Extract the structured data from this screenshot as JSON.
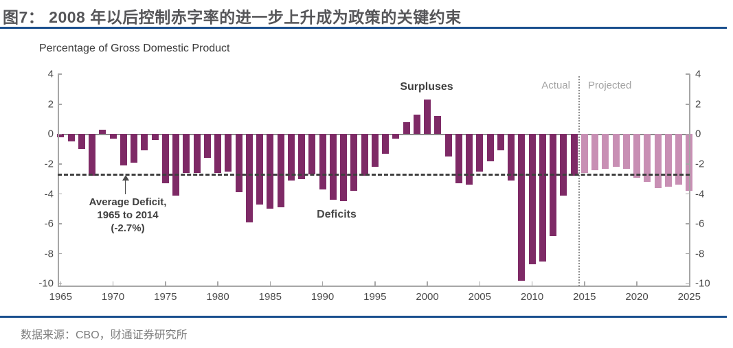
{
  "title": "图7： 2008 年以后控制赤字率的进一步上升成为政策的关键约束",
  "footer": {
    "source": "数据来源：CBO，财通证券研究所"
  },
  "chart_data": {
    "type": "bar",
    "title": "Percentage of Gross Domestic Product",
    "xlabel": "",
    "ylabel": "Percentage of Gross Domestic Product",
    "ylim": [
      -10,
      4
    ],
    "y_ticks": [
      4,
      2,
      0,
      -2,
      -4,
      -6,
      -8,
      -10
    ],
    "x_ticks": [
      1965,
      1970,
      1975,
      1980,
      1985,
      1990,
      1995,
      2000,
      2005,
      2010,
      2015,
      2020,
      2025
    ],
    "x_range": [
      1965,
      2025
    ],
    "grid": false,
    "legend_position": "none",
    "labels": {
      "surpluses": "Surpluses",
      "deficits": "Deficits"
    },
    "average_line": {
      "value": -2.7,
      "label_lines": [
        "Average Deficit,",
        "1965 to 2014",
        "(-2.7%)"
      ]
    },
    "separator": {
      "between": [
        2014,
        2015
      ],
      "left_label": "Actual",
      "right_label": "Projected"
    },
    "colors": {
      "actual_bar": "#7E2A66",
      "projected_bar": "#C88FB4",
      "dashed_line": "#3F3F3F",
      "axis": "#a6a6a6",
      "rule_blue": "#1A4F8E"
    },
    "series": [
      {
        "name": "Actual",
        "color_key": "actual_bar",
        "start_year": 1965,
        "values": [
          -0.2,
          -0.5,
          -1.0,
          -2.8,
          0.3,
          -0.3,
          -2.1,
          -1.9,
          -1.1,
          -0.4,
          -3.3,
          -4.1,
          -2.6,
          -2.6,
          -1.6,
          -2.6,
          -2.5,
          -3.9,
          -5.9,
          -4.7,
          -5.0,
          -4.9,
          -3.1,
          -3.0,
          -2.7,
          -3.7,
          -4.4,
          -4.5,
          -3.8,
          -2.8,
          -2.2,
          -1.3,
          -0.3,
          0.8,
          1.3,
          2.3,
          1.2,
          -1.5,
          -3.3,
          -3.4,
          -2.5,
          -1.8,
          -1.1,
          -3.1,
          -9.8,
          -8.7,
          -8.5,
          -6.8,
          -4.1,
          -2.8
        ]
      },
      {
        "name": "Projected",
        "color_key": "projected_bar",
        "start_year": 2015,
        "values": [
          -2.6,
          -2.4,
          -2.3,
          -2.2,
          -2.3,
          -2.9,
          -3.2,
          -3.6,
          -3.5,
          -3.4,
          -3.8
        ]
      }
    ]
  }
}
